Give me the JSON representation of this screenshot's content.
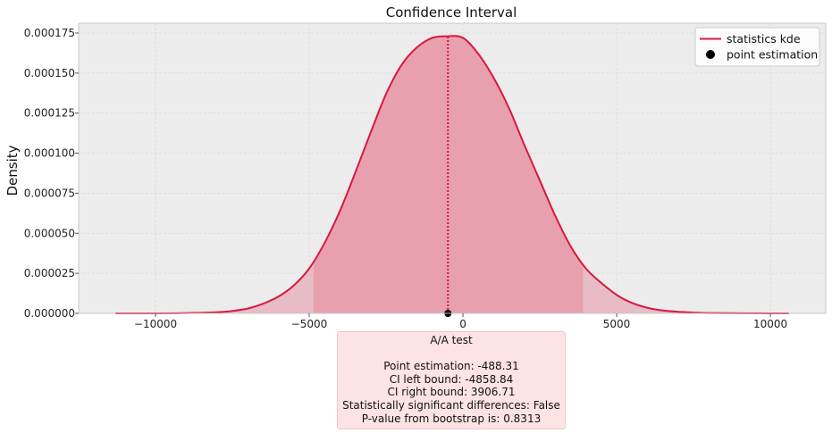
{
  "chart_data": {
    "type": "area",
    "title": "Confidence Interval",
    "xlabel": "",
    "ylabel": "Density",
    "xlim": [
      -12500,
      11800
    ],
    "ylim": [
      0,
      0.000175
    ],
    "xticks": [
      -10000,
      -5000,
      0,
      5000,
      10000
    ],
    "xtick_labels": [
      "−10000",
      "−5000",
      "0",
      "5000",
      "10000"
    ],
    "yticks": [
      0,
      2.5e-05,
      5e-05,
      7.5e-05,
      0.0001,
      0.000125,
      0.00015,
      0.000175
    ],
    "ytick_labels": [
      "0.000000",
      "0.000025",
      "0.000050",
      "0.000075",
      "0.000100",
      "0.000125",
      "0.000150",
      "0.000175"
    ],
    "grid": true,
    "legend_position": "top-right",
    "series": [
      {
        "name": "statistics kde",
        "color": "#d7193f",
        "x": [
          -11300,
          -10000,
          -9000,
          -8000,
          -7500,
          -7000,
          -6500,
          -6000,
          -5500,
          -5000,
          -4500,
          -4000,
          -3500,
          -3000,
          -2500,
          -2000,
          -1500,
          -1000,
          -500,
          0,
          500,
          1000,
          1500,
          2000,
          2500,
          3000,
          3500,
          4000,
          4500,
          5000,
          5500,
          6000,
          6500,
          7000,
          7500,
          8000,
          9000,
          10000,
          10600
        ],
        "y": [
          0,
          0,
          2e-07,
          7e-07,
          1.5e-06,
          3e-06,
          6e-06,
          1.05e-05,
          1.75e-05,
          2.8e-05,
          4.4e-05,
          6.4e-05,
          8.8e-05,
          0.000113,
          0.000137,
          0.000155,
          0.000166,
          0.000172,
          0.000173,
          0.000172,
          0.000162,
          0.000147,
          0.000128,
          0.000105,
          8.3e-05,
          6.1e-05,
          4.2e-05,
          2.8e-05,
          1.9e-05,
          1.15e-05,
          6.5e-06,
          3.5e-06,
          1.8e-06,
          1e-06,
          5e-07,
          2e-07,
          1e-07,
          0,
          0
        ]
      },
      {
        "name": "point estimation",
        "color": "#000000",
        "x": [
          -488.31
        ],
        "y": [
          0
        ]
      }
    ],
    "ci": {
      "left": -4858.84,
      "right": 3906.71
    },
    "ci_fill_color": "#e8a0ae",
    "tail_fill_color": "#e8bcc6",
    "background_color": "#ececec"
  },
  "info": {
    "test_name": "A/A test",
    "lines": [
      "Point estimation: -488.31",
      "CI left bound: -4858.84",
      "CI right bound: 3906.71",
      "Statistically significant differences: False",
      "P-value from bootstrap is: 0.8313"
    ]
  }
}
